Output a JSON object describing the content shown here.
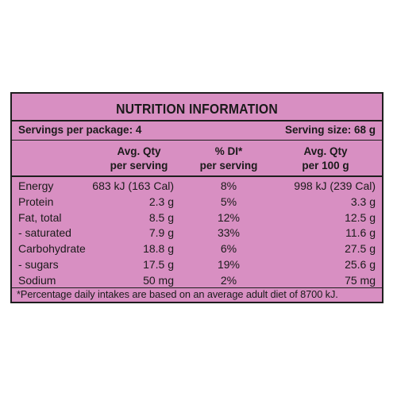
{
  "panel": {
    "title": "NUTRITION INFORMATION",
    "servings_per_package": "Servings per package: 4",
    "serving_size": "Serving size: 68 g",
    "columns": [
      {
        "line1": "Avg. Qty",
        "line2": "per serving"
      },
      {
        "line1": "% DI*",
        "line2": "per serving"
      },
      {
        "line1": "Avg. Qty",
        "line2": "per 100 g"
      }
    ],
    "rows": [
      {
        "name": "Energy",
        "per_serving": "683 kJ (163 Cal)",
        "di": "8%",
        "per_100g": "998 kJ (239 Cal)"
      },
      {
        "name": "Protein",
        "per_serving": "2.3 g",
        "di": "5%",
        "per_100g": "3.3 g"
      },
      {
        "name": "Fat, total",
        "per_serving": "8.5 g",
        "di": "12%",
        "per_100g": "12.5 g"
      },
      {
        "name": "- saturated",
        "per_serving": "7.9 g",
        "di": "33%",
        "per_100g": "11.6 g"
      },
      {
        "name": "Carbohydrate",
        "per_serving": "18.8 g",
        "di": "6%",
        "per_100g": "27.5 g"
      },
      {
        "name": "- sugars",
        "per_serving": "17.5 g",
        "di": "19%",
        "per_100g": "25.6 g"
      },
      {
        "name": "Sodium",
        "per_serving": "50 mg",
        "di": "2%",
        "per_100g": "75 mg"
      }
    ],
    "footnote": "*Percentage daily intakes are based on an average adult diet of 8700 kJ."
  },
  "colors": {
    "panel_background": "#d88fc2",
    "border": "#1e1e1e",
    "text": "#1a1a1a"
  }
}
